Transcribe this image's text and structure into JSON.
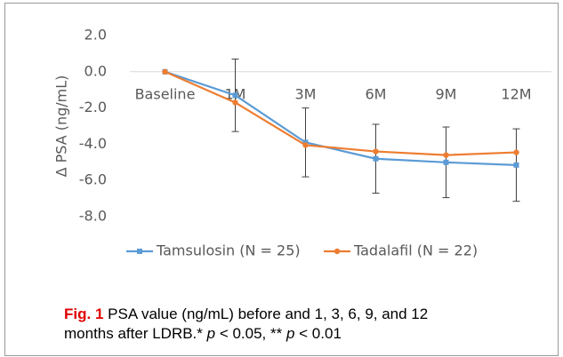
{
  "chart_data": {
    "type": "line",
    "y_label": "Δ PSA (ng/mL)",
    "categories": [
      "Baseline",
      "1M",
      "3M",
      "6M",
      "9M",
      "12M"
    ],
    "series": [
      {
        "name": "Tamsulosin (N = 25)",
        "color": "#5b9bd5",
        "values": [
          0,
          -1.3,
          -3.9,
          -4.8,
          -5.0,
          -5.15
        ],
        "errors": [
          null,
          2.0,
          1.9,
          1.9,
          1.95,
          2.0
        ]
      },
      {
        "name": "Tadalafil (N = 22)",
        "color": "#ed7d31",
        "values": [
          0,
          -1.7,
          -4.05,
          -4.4,
          -4.6,
          -4.45
        ]
      }
    ],
    "ylim": [
      -8,
      2
    ],
    "yticks": [
      {
        "value": 2,
        "label": "2.0"
      },
      {
        "value": 0,
        "label": "0.0"
      },
      {
        "value": -2,
        "label": "-2.0"
      },
      {
        "value": -4,
        "label": "-4.0"
      },
      {
        "value": -6,
        "label": "-6.0"
      },
      {
        "value": -8,
        "label": "-8.0"
      }
    ],
    "legend": "bottom"
  },
  "caption": {
    "label": "Fig. 1",
    "text1": "PSA value (ng/mL) before and 1, 3, 6, 9, and 12",
    "text2": "months after LDRB.",
    "text3": "* ",
    "p1": "p",
    "text4": " < 0.05, ** ",
    "p2": "p",
    "text5": " < 0.01"
  }
}
